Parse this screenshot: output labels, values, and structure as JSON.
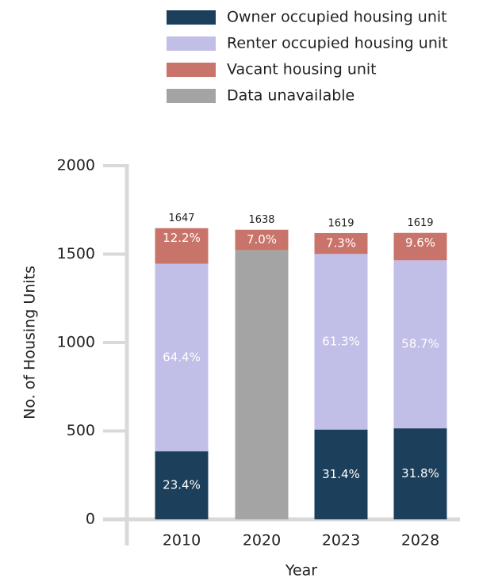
{
  "chart_data": {
    "type": "stacked_bar",
    "categories": [
      "2010",
      "2020",
      "2023",
      "2028"
    ],
    "series": [
      {
        "name": "Owner occupied housing unit",
        "color": "#1c3f5b",
        "values": [
          385,
          null,
          508,
          515
        ],
        "value_labels": [
          "23.4%",
          null,
          "31.4%",
          "31.8%"
        ]
      },
      {
        "name": "Renter occupied housing unit",
        "color": "#c1bee7",
        "values": [
          1061,
          null,
          993,
          950
        ],
        "value_labels": [
          "64.4%",
          null,
          "61.3%",
          "58.7%"
        ]
      },
      {
        "name": "Vacant housing unit",
        "color": "#c9746a",
        "values": [
          201,
          115,
          118,
          155
        ],
        "value_labels": [
          "12.2%",
          "7.0%",
          "7.3%",
          "9.6%"
        ]
      },
      {
        "name": "Data unavailable",
        "color": "#a4a4a4",
        "values": [
          null,
          1523,
          null,
          null
        ],
        "value_labels": [
          null,
          null,
          null,
          null
        ]
      }
    ],
    "totals": [
      1647,
      1638,
      1619,
      1619
    ],
    "ylim": [
      0,
      2000
    ],
    "yticks": [
      0,
      500,
      1000,
      1500,
      2000
    ],
    "xlabel": "Year",
    "ylabel": "No. of Housing Units",
    "legend": "top"
  }
}
